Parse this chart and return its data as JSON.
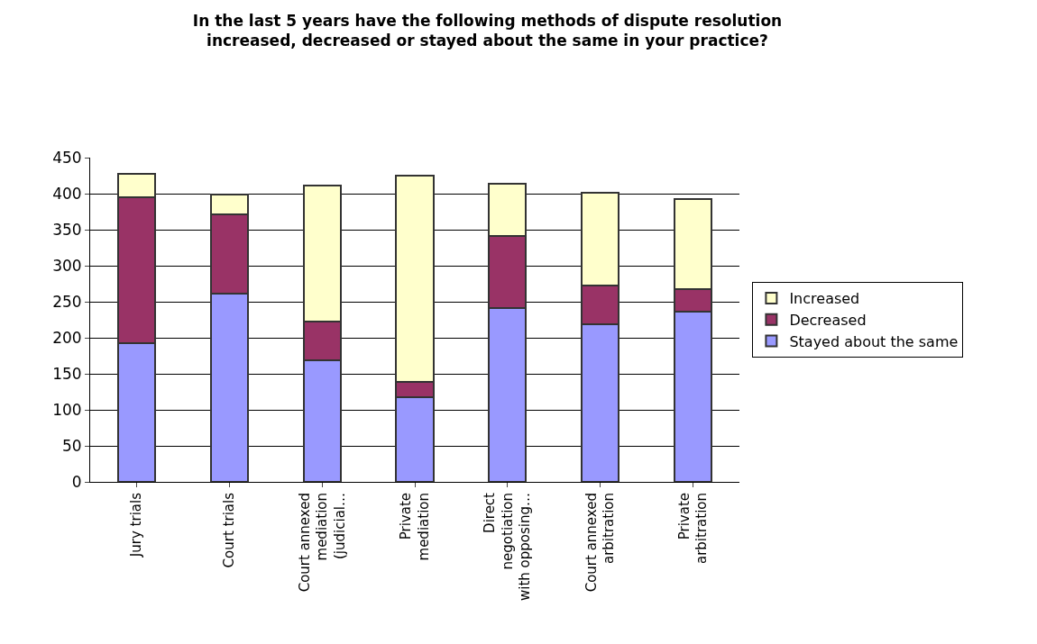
{
  "chart_data": {
    "type": "bar",
    "stacked": true,
    "title": "In the last 5 years have the following methods of dispute resolution increased, decreased or stayed about the same in your practice?",
    "categories": [
      "Jury trials",
      "Court trials",
      "Court annexed mediation (judicial…",
      "Private mediation",
      "Direct negotiation with opposing…",
      "Court annexed arbitration",
      "Private arbitration"
    ],
    "series": [
      {
        "name": "Stayed about the same",
        "color": "#9999ff",
        "values": [
          193,
          261,
          169,
          117,
          241,
          219,
          236
        ]
      },
      {
        "name": "Decreased",
        "color": "#993366",
        "values": [
          202,
          110,
          54,
          22,
          100,
          54,
          32
        ]
      },
      {
        "name": "Increased",
        "color": "#ffffcc",
        "values": [
          32,
          28,
          188,
          286,
          73,
          128,
          124
        ]
      }
    ],
    "ylim": [
      0,
      450
    ],
    "yticks": [
      0,
      50,
      100,
      150,
      200,
      250,
      300,
      350,
      400,
      450
    ],
    "grid": "y",
    "legend": "right"
  }
}
